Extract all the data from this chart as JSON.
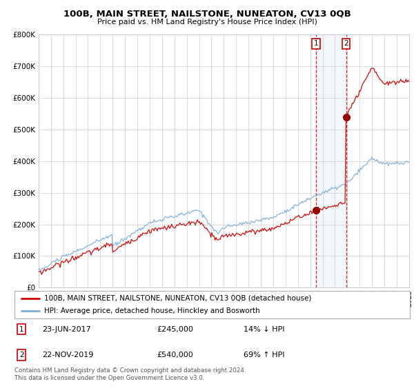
{
  "title": "100B, MAIN STREET, NAILSTONE, NUNEATON, CV13 0QB",
  "subtitle": "Price paid vs. HM Land Registry's House Price Index (HPI)",
  "ylim": [
    0,
    800000
  ],
  "yticks": [
    0,
    100000,
    200000,
    300000,
    400000,
    500000,
    600000,
    700000,
    800000
  ],
  "ytick_labels": [
    "£0",
    "£100K",
    "£200K",
    "£300K",
    "£400K",
    "£500K",
    "£600K",
    "£700K",
    "£800K"
  ],
  "hpi_color": "#7aadd4",
  "price_color": "#cc0000",
  "background_color": "#ffffff",
  "grid_color": "#cccccc",
  "sale1_date_label": "23-JUN-2017",
  "sale1_price": 245000,
  "sale1_price_str": "£245,000",
  "sale1_pct": "14% ↓ HPI",
  "sale1_x": 2017.48,
  "sale2_date_label": "22-NOV-2019",
  "sale2_price": 540000,
  "sale2_price_str": "£540,000",
  "sale2_pct": "69% ↑ HPI",
  "sale2_x": 2019.9,
  "legend_line1": "100B, MAIN STREET, NAILSTONE, NUNEATON, CV13 0QB (detached house)",
  "legend_line2": "HPI: Average price, detached house, Hinckley and Bosworth",
  "footer": "Contains HM Land Registry data © Crown copyright and database right 2024.\nThis data is licensed under the Open Government Licence v3.0.",
  "xmin": 1995,
  "xmax": 2025
}
